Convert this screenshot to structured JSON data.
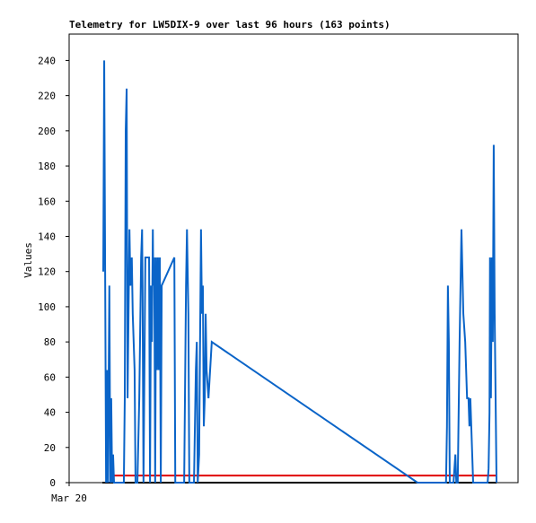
{
  "chart_data": {
    "type": "line",
    "title": "Telemetry for LW5DIX-9 over last 96 hours (163 points)",
    "ylabel": "Values",
    "xlim": [
      0,
      96
    ],
    "xticks": [
      {
        "value": 0,
        "label": "Mar 20"
      }
    ],
    "ylim": [
      0,
      255
    ],
    "yticks": [
      0,
      20,
      40,
      60,
      80,
      100,
      120,
      140,
      160,
      180,
      200,
      220,
      240
    ],
    "series": [
      {
        "color": "#000000",
        "x": [
          7.1,
          91.4
        ],
        "values": [
          0,
          0
        ]
      },
      {
        "color": "#e00000",
        "x": [
          9.6,
          91.4
        ],
        "values": [
          4,
          4
        ]
      },
      {
        "color": "#0a64c8",
        "x": [
          7.3,
          7.5,
          7.7,
          7.9,
          8.1,
          8.3,
          8.4,
          8.6,
          8.8,
          9.0,
          9.2,
          9.4,
          9.6,
          11.7,
          11.9,
          12.1,
          12.3,
          12.5,
          12.9,
          13.1,
          13.4,
          13.6,
          14.0,
          14.2,
          14.6,
          15.0,
          15.4,
          15.6,
          15.7,
          15.9,
          16.3,
          16.5,
          17.1,
          17.3,
          17.5,
          17.7,
          17.9,
          18.0,
          18.2,
          18.4,
          18.6,
          18.8,
          19.0,
          19.2,
          19.4,
          19.6,
          19.8,
          22.5,
          22.7,
          23.0,
          24.6,
          25.0,
          25.2,
          25.3,
          25.5,
          25.7,
          26.3,
          26.7,
          27.1,
          27.3,
          27.5,
          27.8,
          28.2,
          28.4,
          28.6,
          28.8,
          29.0,
          29.2,
          29.4,
          29.8,
          30.5,
          74.5,
          80.6,
          80.8,
          81.0,
          81.2,
          81.4,
          82.2,
          82.6,
          82.8,
          83.1,
          83.5,
          83.9,
          84.3,
          84.7,
          85.1,
          85.4,
          85.6,
          85.8,
          86.2,
          86.4,
          89.5,
          89.7,
          89.9,
          90.0,
          90.2,
          90.4,
          90.6,
          90.8,
          91.0,
          91.4
        ],
        "values": [
          120,
          240,
          120,
          0,
          64,
          0,
          40,
          112,
          0,
          48,
          0,
          16,
          0,
          0,
          48,
          200,
          224,
          48,
          144,
          112,
          128,
          96,
          64,
          0,
          0,
          48,
          128,
          144,
          112,
          0,
          128,
          128,
          128,
          0,
          112,
          80,
          144,
          112,
          128,
          0,
          128,
          64,
          128,
          64,
          128,
          0,
          112,
          128,
          0,
          0,
          0,
          112,
          144,
          128,
          96,
          0,
          0,
          0,
          64,
          80,
          0,
          16,
          144,
          96,
          112,
          32,
          48,
          96,
          64,
          48,
          80,
          0,
          0,
          32,
          112,
          80,
          0,
          0,
          16,
          0,
          0,
          80,
          144,
          96,
          80,
          48,
          48,
          32,
          48,
          16,
          0,
          0,
          8,
          40,
          128,
          48,
          128,
          80,
          192,
          96,
          0
        ]
      }
    ]
  }
}
